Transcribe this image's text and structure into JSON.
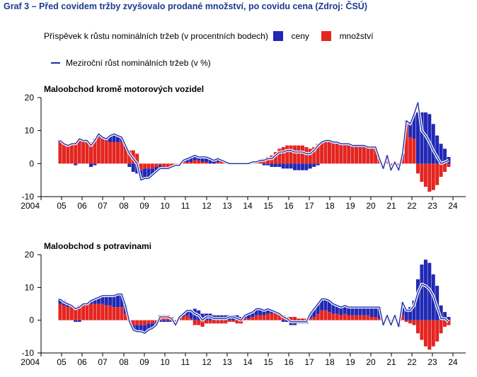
{
  "title": "Graf 3 – Před covidem tržby zvyšovalo prodané množství, po covidu cena (Zdroj: ČSÚ)",
  "legend": {
    "bars_caption": "Příspěvek k růstu nominálních tržeb (v procentních bodech)",
    "ceny": "ceny",
    "mnozstvi": "množství",
    "line": "Meziroční růst nominálních tržeb (v %)"
  },
  "colors": {
    "ceny": "#2028b5",
    "mnozstvi": "#e42520",
    "line": "#1f2ea8"
  },
  "chart_data": [
    {
      "type": "bar",
      "title": "Maloobchod kromě motorových vozidel",
      "x_ticks": [
        "2004",
        "05",
        "06",
        "07",
        "08",
        "09",
        "10",
        "11",
        "12",
        "13",
        "14",
        "15",
        "16",
        "17",
        "18",
        "19",
        "20",
        "21",
        "22",
        "23",
        "24"
      ],
      "y_ticks": [
        "20",
        "10",
        "0",
        "-10"
      ],
      "ylim": [
        -10,
        20
      ],
      "series": [
        {
          "name": "množství",
          "values": [
            6.5,
            6,
            5.5,
            6,
            6.5,
            7,
            6.5,
            6.5,
            6.5,
            7.5,
            8,
            7.5,
            7,
            6.5,
            6.5,
            6.5,
            6.5,
            4.5,
            4,
            4,
            3,
            -2,
            -1.5,
            -1.5,
            -1.5,
            -1,
            -0.5,
            -1,
            -1,
            -1,
            -0.5,
            -0.5,
            0.5,
            0.5,
            0.5,
            1,
            1,
            0.5,
            0.5,
            0,
            0,
            0.5,
            0.5,
            0.5,
            0,
            0,
            0,
            0,
            0,
            0,
            0.5,
            0.5,
            1,
            1.5,
            2,
            2.5,
            3.5,
            4.5,
            5,
            5.5,
            5.5,
            5.5,
            5.5,
            5.5,
            5,
            4.5,
            5,
            6,
            6.5,
            6.5,
            6.5,
            6,
            6,
            5.5,
            5.5,
            5.5,
            5,
            5,
            5,
            5,
            4.5,
            4.5,
            4.5,
            1,
            -1,
            2,
            -1.5,
            0,
            -1.5,
            2,
            12,
            8,
            7.5,
            -3,
            -5.5,
            -7,
            -8.5,
            -8,
            -6.5,
            -4,
            -2.5,
            -1
          ]
        },
        {
          "name": "ceny",
          "values": [
            0.5,
            0,
            0,
            0,
            -0.5,
            0.5,
            0.5,
            0.5,
            -1,
            -0.5,
            1,
            0.5,
            0.5,
            2,
            2.5,
            2,
            1.5,
            1,
            -1,
            -2.5,
            -3,
            -3,
            -3,
            -3,
            -2,
            -1.5,
            -1,
            -0.5,
            -0.5,
            0,
            0,
            0,
            0.5,
            1,
            1.5,
            1.5,
            1,
            1.5,
            1.5,
            1.5,
            1,
            1,
            0.5,
            0,
            0,
            0,
            0,
            0,
            0,
            0,
            0,
            0,
            0,
            -0.5,
            -0.5,
            -1,
            -1,
            -1,
            -1.5,
            -1.5,
            -1.5,
            -2,
            -2,
            -2,
            -2,
            -1.5,
            -1,
            -0.5,
            0,
            0.5,
            0.5,
            0.5,
            0.5,
            0.5,
            0.5,
            0.5,
            0.5,
            0.5,
            0.5,
            0.5,
            0.5,
            0.5,
            0.5,
            0.5,
            -0.5,
            0.5,
            -0.5,
            0.5,
            -0.5,
            1,
            1,
            4,
            7.5,
            15.5,
            15.5,
            15.5,
            15,
            12,
            8.5,
            6,
            4.5,
            2
          ]
        },
        {
          "name": "Meziroční růst nominálních tržeb",
          "values": [
            7,
            6,
            5.5,
            6,
            6,
            7.5,
            7,
            7,
            5.5,
            7,
            9,
            8,
            7.5,
            8.5,
            9,
            8.5,
            8,
            5.5,
            3,
            1.5,
            0,
            -5,
            -4.5,
            -4.5,
            -3.5,
            -2.5,
            -1.5,
            -1.5,
            -1.5,
            -1,
            -0.5,
            -0.5,
            1,
            1.5,
            2,
            2.5,
            2,
            2,
            2,
            1.5,
            1,
            1.5,
            1,
            0.5,
            0,
            0,
            0,
            0,
            0,
            0,
            0.5,
            0.5,
            1,
            1,
            1.5,
            1.5,
            2.5,
            3.5,
            3.5,
            4,
            4,
            3.5,
            3.5,
            3.5,
            3,
            3,
            4,
            5.5,
            6.5,
            7,
            7,
            6.5,
            6.5,
            6,
            6,
            6,
            5.5,
            5.5,
            5.5,
            5.5,
            5,
            5,
            5,
            1.5,
            -1.5,
            2.5,
            -2,
            0.5,
            -2,
            3,
            13,
            12,
            15,
            18.5,
            10,
            8.5,
            6.5,
            4,
            2,
            0,
            0.5,
            1
          ]
        }
      ]
    },
    {
      "type": "bar",
      "title": "Maloobchod s potravinami",
      "x_ticks": [
        "2004",
        "05",
        "06",
        "07",
        "08",
        "09",
        "10",
        "11",
        "12",
        "13",
        "14",
        "15",
        "16",
        "17",
        "18",
        "19",
        "20",
        "21",
        "22",
        "23",
        "24"
      ],
      "y_ticks": [
        "20",
        "10",
        "0",
        "-10"
      ],
      "ylim": [
        -10,
        20
      ],
      "series": [
        {
          "name": "množství",
          "values": [
            5,
            4.5,
            4,
            4,
            4,
            4.5,
            4.5,
            4.5,
            5,
            5,
            5,
            5,
            4.5,
            4.5,
            4,
            4,
            4,
            2,
            0,
            -1.5,
            -1.5,
            -1.5,
            -1.5,
            -1,
            -1,
            -0.5,
            1.5,
            1.5,
            1.5,
            1,
            -1,
            0.5,
            1,
            1.5,
            0.5,
            -1.5,
            -1.5,
            -2,
            -1,
            -1,
            -1,
            -1,
            -1,
            -1,
            -0.5,
            -0.5,
            -1,
            -1,
            0.5,
            0.5,
            1,
            1.5,
            1.5,
            1.5,
            2,
            2,
            2,
            2,
            1.5,
            1,
            1,
            1,
            0.5,
            0.5,
            0.5,
            0.5,
            1,
            2,
            3,
            3,
            2.5,
            2,
            2,
            1.5,
            2,
            1.5,
            1.5,
            1.5,
            1.5,
            1.5,
            1.5,
            1,
            1,
            0.5,
            -1,
            0.5,
            -0.5,
            0.5,
            -0.5,
            1.5,
            -0.5,
            -1,
            -1.5,
            -4,
            -6,
            -8,
            -9,
            -8,
            -6.5,
            -4,
            -2,
            -1.5
          ]
        },
        {
          "name": "ceny",
          "values": [
            1.5,
            1.5,
            1,
            0.5,
            -0.5,
            -0.5,
            0.5,
            0.5,
            1,
            1.5,
            2,
            2.5,
            3,
            3,
            3.5,
            4,
            4,
            2.5,
            -0.5,
            -1.5,
            -2,
            -2,
            -2.5,
            -2,
            -1.5,
            -1,
            -0.5,
            -0.5,
            -0.5,
            -0.5,
            -0.5,
            0.5,
            1,
            1.5,
            2.5,
            3.5,
            3,
            2,
            2,
            2,
            1.5,
            1.5,
            1.5,
            1.5,
            1.5,
            1.5,
            1.5,
            1,
            1,
            1.5,
            1.5,
            2,
            2,
            1.5,
            1.5,
            1,
            0.5,
            0,
            -0.5,
            -0.5,
            -1.5,
            -1.5,
            -1,
            -1,
            -1,
            1.5,
            2.5,
            3,
            3.5,
            3.5,
            3.5,
            3,
            2.5,
            2.5,
            2.5,
            2.5,
            2.5,
            2.5,
            2.5,
            2.5,
            2.5,
            3,
            3,
            3.5,
            -0.5,
            1,
            -1,
            1,
            -1.5,
            4,
            3.5,
            4,
            6,
            12.5,
            17,
            18.5,
            17.5,
            14,
            10.5,
            4.5,
            2.5,
            1
          ]
        },
        {
          "name": "Meziroční růst nominálních tržeb",
          "values": [
            6.5,
            5.5,
            5,
            4.5,
            3.5,
            4,
            5,
            5,
            6,
            6.5,
            7,
            7.5,
            7.5,
            7.5,
            7.5,
            8,
            8,
            4.5,
            -0.5,
            -3,
            -3.5,
            -3.5,
            -4,
            -3,
            -2.5,
            -1.5,
            1,
            1,
            1,
            0.5,
            -1.5,
            1,
            2,
            3,
            3,
            2,
            1.5,
            0,
            1,
            1,
            0.5,
            0.5,
            0.5,
            0.5,
            1,
            1,
            0.5,
            0,
            1.5,
            2,
            2.5,
            3.5,
            3.5,
            3,
            3.5,
            3,
            2.5,
            2,
            1,
            0.5,
            -0.5,
            -0.5,
            -0.5,
            -0.5,
            -0.5,
            2,
            3.5,
            5,
            6.5,
            6.5,
            6,
            5,
            4.5,
            4,
            4.5,
            4,
            4,
            4,
            4,
            4,
            4,
            4,
            4,
            4,
            -1.5,
            1.5,
            -1.5,
            1.5,
            -2,
            5.5,
            3,
            3,
            4.5,
            8.5,
            11,
            10.5,
            9.5,
            7.5,
            4,
            0.5,
            0.5,
            -0.5
          ]
        }
      ]
    }
  ]
}
